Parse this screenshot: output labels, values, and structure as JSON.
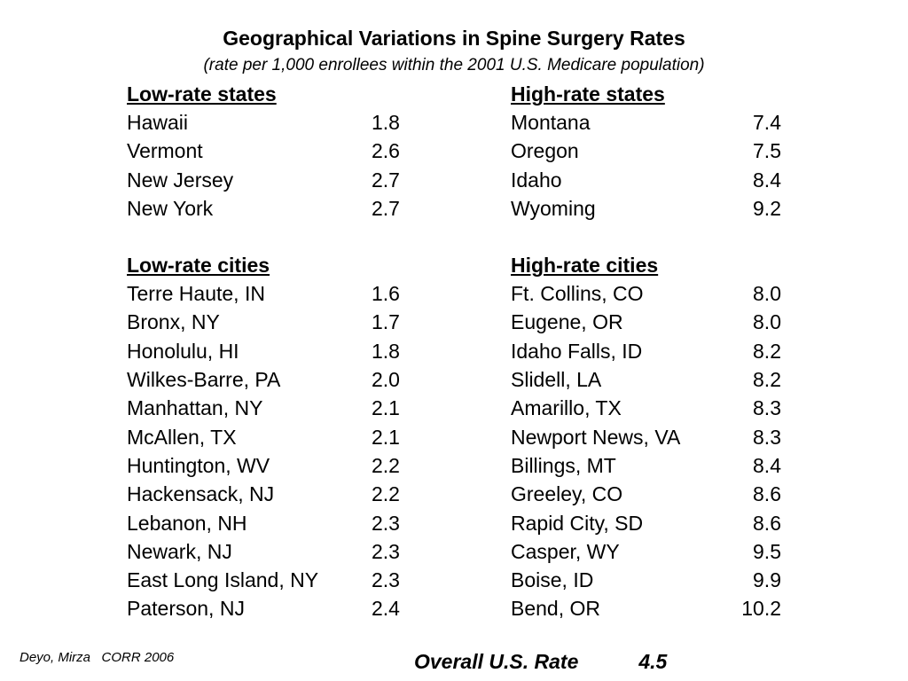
{
  "title": "Geographical Variations in Spine Surgery Rates",
  "subtitle": "(rate per 1,000 enrollees within the 2001 U.S. Medicare population)",
  "low_states": {
    "heading": "Low-rate states",
    "rows": [
      {
        "name": "Hawaii",
        "value": "1.8"
      },
      {
        "name": "Vermont",
        "value": "2.6"
      },
      {
        "name": "New Jersey",
        "value": "2.7"
      },
      {
        "name": "New York",
        "value": "2.7"
      }
    ]
  },
  "high_states": {
    "heading": "High-rate states",
    "rows": [
      {
        "name": "Montana",
        "value": "7.4"
      },
      {
        "name": "Oregon",
        "value": "7.5"
      },
      {
        "name": "Idaho",
        "value": "8.4"
      },
      {
        "name": "Wyoming",
        "value": "9.2"
      }
    ]
  },
  "low_cities": {
    "heading": "Low-rate cities",
    "rows": [
      {
        "name": "Terre Haute, IN",
        "value": "1.6"
      },
      {
        "name": "Bronx, NY",
        "value": "1.7"
      },
      {
        "name": "Honolulu, HI",
        "value": "1.8"
      },
      {
        "name": "Wilkes-Barre, PA",
        "value": "2.0"
      },
      {
        "name": "Manhattan, NY",
        "value": "2.1"
      },
      {
        "name": "McAllen, TX",
        "value": "2.1"
      },
      {
        "name": "Huntington, WV",
        "value": "2.2"
      },
      {
        "name": "Hackensack, NJ",
        "value": "2.2"
      },
      {
        "name": "Lebanon, NH",
        "value": "2.3"
      },
      {
        "name": "Newark, NJ",
        "value": "2.3"
      },
      {
        "name": "East Long Island, NY",
        "value": "2.3"
      },
      {
        "name": "Paterson, NJ",
        "value": "2.4"
      }
    ]
  },
  "high_cities": {
    "heading": "High-rate cities",
    "rows": [
      {
        "name": "Ft. Collins, CO",
        "value": "8.0"
      },
      {
        "name": "Eugene, OR",
        "value": "8.0"
      },
      {
        "name": "Idaho Falls, ID",
        "value": "8.2"
      },
      {
        "name": "Slidell, LA",
        "value": "8.2"
      },
      {
        "name": "Amarillo, TX",
        "value": "8.3"
      },
      {
        "name": "Newport News, VA",
        "value": "8.3"
      },
      {
        "name": "Billings, MT",
        "value": "8.4"
      },
      {
        "name": "Greeley, CO",
        "value": "8.6"
      },
      {
        "name": "Rapid City, SD",
        "value": "8.6"
      },
      {
        "name": "Casper, WY",
        "value": "9.5"
      },
      {
        "name": "Boise, ID",
        "value": "9.9"
      },
      {
        "name": "Bend, OR",
        "value": "10.2"
      }
    ]
  },
  "citation": "Deyo, Mirza   CORR 2006",
  "overall": {
    "label": "Overall U.S. Rate",
    "value": "4.5"
  }
}
